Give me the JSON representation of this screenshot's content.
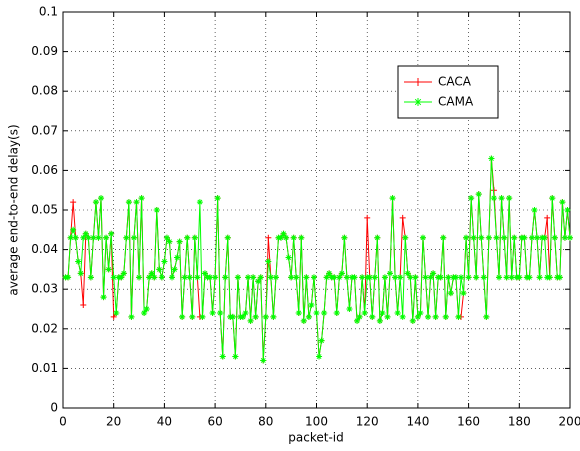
{
  "chart_data": {
    "type": "line",
    "xlabel": "packet-id",
    "ylabel": "average end-to-end delay(s)",
    "x": [
      1,
      2,
      3,
      4,
      5,
      6,
      7,
      8,
      9,
      10,
      11,
      12,
      13,
      14,
      15,
      16,
      17,
      18,
      19,
      20,
      21,
      22,
      23,
      24,
      25,
      26,
      27,
      28,
      29,
      30,
      31,
      32,
      33,
      34,
      35,
      36,
      37,
      38,
      39,
      40,
      41,
      42,
      43,
      44,
      45,
      46,
      47,
      48,
      49,
      50,
      51,
      52,
      53,
      54,
      55,
      56,
      57,
      58,
      59,
      60,
      61,
      62,
      63,
      64,
      65,
      66,
      67,
      68,
      69,
      70,
      71,
      72,
      73,
      74,
      75,
      76,
      77,
      78,
      79,
      80,
      81,
      82,
      83,
      84,
      85,
      86,
      87,
      88,
      89,
      90,
      91,
      92,
      93,
      94,
      95,
      96,
      97,
      98,
      99,
      100,
      101,
      102,
      103,
      104,
      105,
      106,
      107,
      108,
      109,
      110,
      111,
      112,
      113,
      114,
      115,
      116,
      117,
      118,
      119,
      120,
      121,
      122,
      123,
      124,
      125,
      126,
      127,
      128,
      129,
      130,
      131,
      132,
      133,
      134,
      135,
      136,
      137,
      138,
      139,
      140,
      141,
      142,
      143,
      144,
      145,
      146,
      147,
      148,
      149,
      150,
      151,
      152,
      153,
      154,
      155,
      156,
      157,
      158,
      159,
      160,
      161,
      162,
      163,
      164,
      165,
      166,
      167,
      168,
      169,
      170,
      171,
      172,
      173,
      174,
      175,
      176,
      177,
      178,
      179,
      180,
      181,
      182,
      183,
      184,
      185,
      186,
      187,
      188,
      189,
      190,
      191,
      192,
      193,
      194,
      195,
      196,
      197,
      198,
      199,
      200
    ],
    "series": [
      {
        "name": "CACA",
        "color": "#ff0000",
        "marker": "plus",
        "values": [
          0.033,
          0.033,
          0.043,
          0.052,
          0.043,
          0.037,
          0.034,
          0.026,
          0.044,
          0.043,
          0.033,
          0.043,
          0.052,
          0.043,
          0.053,
          0.028,
          0.043,
          0.035,
          0.044,
          0.023,
          0.024,
          0.033,
          0.033,
          0.034,
          0.043,
          0.052,
          0.023,
          0.043,
          0.052,
          0.033,
          0.053,
          0.024,
          0.025,
          0.033,
          0.034,
          0.033,
          0.05,
          0.035,
          0.033,
          0.037,
          0.043,
          0.042,
          0.033,
          0.035,
          0.038,
          0.042,
          0.023,
          0.033,
          0.043,
          0.033,
          0.023,
          0.043,
          0.033,
          0.023,
          0.023,
          0.034,
          0.033,
          0.033,
          0.024,
          0.033,
          0.053,
          0.024,
          0.013,
          0.033,
          0.043,
          0.023,
          0.023,
          0.013,
          0.033,
          0.023,
          0.023,
          0.024,
          0.033,
          0.022,
          0.033,
          0.023,
          0.032,
          0.033,
          0.012,
          0.023,
          0.043,
          0.033,
          0.023,
          0.033,
          0.043,
          0.043,
          0.044,
          0.043,
          0.038,
          0.033,
          0.043,
          0.033,
          0.024,
          0.043,
          0.022,
          0.033,
          0.023,
          0.026,
          0.033,
          0.024,
          0.013,
          0.017,
          0.024,
          0.033,
          0.034,
          0.033,
          0.033,
          0.024,
          0.033,
          0.034,
          0.043,
          0.033,
          0.025,
          0.033,
          0.033,
          0.022,
          0.023,
          0.033,
          0.024,
          0.048,
          0.033,
          0.023,
          0.033,
          0.043,
          0.022,
          0.024,
          0.033,
          0.023,
          0.034,
          0.053,
          0.033,
          0.024,
          0.033,
          0.048,
          0.043,
          0.034,
          0.033,
          0.022,
          0.033,
          0.023,
          0.024,
          0.043,
          0.033,
          0.023,
          0.033,
          0.034,
          0.023,
          0.033,
          0.033,
          0.043,
          0.023,
          0.033,
          0.029,
          0.033,
          0.033,
          0.023,
          0.023,
          0.029,
          0.043,
          0.033,
          0.053,
          0.043,
          0.033,
          0.054,
          0.043,
          0.033,
          0.023,
          0.043,
          0.063,
          0.055,
          0.043,
          0.033,
          0.053,
          0.043,
          0.033,
          0.053,
          0.033,
          0.043,
          0.033,
          0.033,
          0.043,
          0.043,
          0.033,
          0.033,
          0.043,
          0.05,
          0.043,
          0.033,
          0.043,
          0.043,
          0.048,
          0.033,
          0.053,
          0.043,
          0.033,
          0.033,
          0.052,
          0.043,
          0.05,
          0.043
        ]
      },
      {
        "name": "CAMA",
        "color": "#00ff00",
        "marker": "star",
        "values": [
          0.033,
          0.033,
          0.043,
          0.045,
          0.043,
          0.037,
          0.034,
          0.043,
          0.044,
          0.043,
          0.033,
          0.043,
          0.052,
          0.043,
          0.053,
          0.028,
          0.043,
          0.035,
          0.044,
          0.033,
          0.024,
          0.033,
          0.033,
          0.034,
          0.043,
          0.052,
          0.023,
          0.043,
          0.052,
          0.033,
          0.053,
          0.024,
          0.025,
          0.033,
          0.034,
          0.033,
          0.05,
          0.035,
          0.033,
          0.037,
          0.043,
          0.042,
          0.033,
          0.035,
          0.038,
          0.042,
          0.023,
          0.033,
          0.043,
          0.033,
          0.023,
          0.043,
          0.033,
          0.052,
          0.023,
          0.034,
          0.033,
          0.033,
          0.024,
          0.033,
          0.053,
          0.024,
          0.013,
          0.033,
          0.043,
          0.023,
          0.023,
          0.013,
          0.033,
          0.023,
          0.023,
          0.024,
          0.033,
          0.022,
          0.033,
          0.023,
          0.032,
          0.033,
          0.012,
          0.023,
          0.037,
          0.033,
          0.023,
          0.033,
          0.043,
          0.043,
          0.044,
          0.043,
          0.038,
          0.033,
          0.043,
          0.033,
          0.024,
          0.043,
          0.022,
          0.033,
          0.023,
          0.026,
          0.033,
          0.024,
          0.013,
          0.017,
          0.024,
          0.033,
          0.034,
          0.033,
          0.033,
          0.024,
          0.033,
          0.034,
          0.043,
          0.033,
          0.025,
          0.033,
          0.033,
          0.022,
          0.023,
          0.033,
          0.024,
          0.033,
          0.033,
          0.023,
          0.033,
          0.043,
          0.022,
          0.024,
          0.033,
          0.023,
          0.034,
          0.053,
          0.033,
          0.024,
          0.033,
          0.023,
          0.043,
          0.034,
          0.033,
          0.022,
          0.033,
          0.023,
          0.024,
          0.043,
          0.033,
          0.023,
          0.033,
          0.034,
          0.023,
          0.033,
          0.033,
          0.043,
          0.023,
          0.033,
          0.029,
          0.033,
          0.033,
          0.023,
          0.033,
          0.029,
          0.043,
          0.033,
          0.053,
          0.043,
          0.033,
          0.054,
          0.043,
          0.033,
          0.023,
          0.043,
          0.063,
          0.053,
          0.043,
          0.033,
          0.053,
          0.043,
          0.033,
          0.053,
          0.033,
          0.043,
          0.033,
          0.033,
          0.043,
          0.043,
          0.033,
          0.033,
          0.043,
          0.05,
          0.043,
          0.033,
          0.043,
          0.043,
          0.033,
          0.033,
          0.053,
          0.043,
          0.033,
          0.033,
          0.052,
          0.043,
          0.05,
          0.043
        ]
      }
    ],
    "xlim": [
      0,
      200
    ],
    "xticks": [
      0,
      20,
      40,
      60,
      80,
      100,
      120,
      140,
      160,
      180,
      200
    ],
    "ylim": [
      0,
      0.1
    ],
    "yticks": [
      0,
      0.01,
      0.02,
      0.03,
      0.04,
      0.05,
      0.06,
      0.07,
      0.08,
      0.09,
      0.1
    ],
    "grid": true,
    "legend_loc": "northeast"
  }
}
